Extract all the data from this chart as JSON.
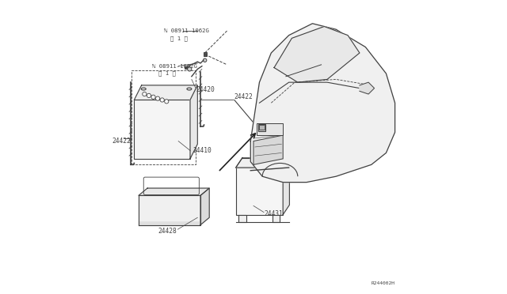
{
  "bg_color": "#ffffff",
  "fig_width": 6.4,
  "fig_height": 3.72,
  "dpi": 100,
  "ref_code": "R244002H",
  "line_color": "#404040",
  "text_color": "#404040"
}
